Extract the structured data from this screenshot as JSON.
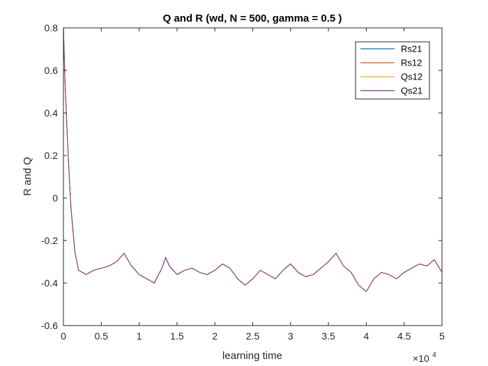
{
  "chart_data": {
    "type": "line",
    "title": "Q and R (wd, N = 500, gamma = 0.5 )",
    "xlabel": "learning time",
    "ylabel": "R and Q",
    "xlim": [
      0,
      50000
    ],
    "ylim": [
      -0.6,
      0.8
    ],
    "x_tick_labels": [
      "0",
      "0.5",
      "1",
      "1.5",
      "2",
      "2.5",
      "3",
      "3.5",
      "4",
      "4.5",
      "5"
    ],
    "x_tick_values": [
      0,
      5000,
      10000,
      15000,
      20000,
      25000,
      30000,
      35000,
      40000,
      45000,
      50000
    ],
    "x_multiplier_base": "×10",
    "x_multiplier_exp": "4",
    "y_tick_labels": [
      "0.8",
      "0.6",
      "0.4",
      "0.2",
      "0",
      "-0.2",
      "-0.4",
      "-0.6"
    ],
    "y_tick_values": [
      0.8,
      0.6,
      0.4,
      0.2,
      0,
      -0.2,
      -0.4,
      -0.6
    ],
    "legend_position": "top-right",
    "x": [
      0,
      200,
      500,
      800,
      1000,
      1500,
      2000,
      2500,
      3000,
      4000,
      5000,
      6000,
      7000,
      8000,
      9000,
      10000,
      11000,
      12000,
      13000,
      13500,
      14000,
      15000,
      16000,
      17000,
      18000,
      19000,
      20000,
      21000,
      22000,
      23000,
      24000,
      25000,
      26000,
      27000,
      28000,
      29000,
      30000,
      31000,
      32000,
      33000,
      34000,
      35000,
      36000,
      37000,
      38000,
      39000,
      40000,
      41000,
      42000,
      43000,
      44000,
      45000,
      46000,
      47000,
      48000,
      49000,
      50000
    ],
    "series": [
      {
        "name": "Rs21",
        "color": "#0072BD",
        "values": [
          0.8,
          0.55,
          0.3,
          0.08,
          -0.05,
          -0.25,
          -0.34,
          -0.35,
          -0.36,
          -0.34,
          -0.33,
          -0.32,
          -0.3,
          -0.26,
          -0.32,
          -0.36,
          -0.38,
          -0.4,
          -0.33,
          -0.28,
          -0.32,
          -0.36,
          -0.34,
          -0.33,
          -0.35,
          -0.36,
          -0.34,
          -0.31,
          -0.33,
          -0.38,
          -0.41,
          -0.38,
          -0.34,
          -0.36,
          -0.38,
          -0.34,
          -0.31,
          -0.35,
          -0.37,
          -0.36,
          -0.33,
          -0.3,
          -0.26,
          -0.32,
          -0.35,
          -0.41,
          -0.44,
          -0.38,
          -0.35,
          -0.36,
          -0.38,
          -0.35,
          -0.33,
          -0.31,
          -0.32,
          -0.29,
          -0.35
        ]
      },
      {
        "name": "Rs12",
        "color": "#D95319",
        "values": [
          0.8,
          0.55,
          0.3,
          0.08,
          -0.05,
          -0.25,
          -0.34,
          -0.35,
          -0.36,
          -0.34,
          -0.33,
          -0.32,
          -0.3,
          -0.26,
          -0.32,
          -0.36,
          -0.38,
          -0.4,
          -0.33,
          -0.28,
          -0.32,
          -0.36,
          -0.34,
          -0.33,
          -0.35,
          -0.36,
          -0.34,
          -0.31,
          -0.33,
          -0.38,
          -0.41,
          -0.38,
          -0.34,
          -0.36,
          -0.38,
          -0.34,
          -0.31,
          -0.35,
          -0.37,
          -0.36,
          -0.33,
          -0.3,
          -0.26,
          -0.32,
          -0.35,
          -0.41,
          -0.44,
          -0.38,
          -0.35,
          -0.36,
          -0.38,
          -0.35,
          -0.33,
          -0.31,
          -0.32,
          -0.29,
          -0.35
        ]
      },
      {
        "name": "Qs12",
        "color": "#EDB120",
        "values": [
          0.8,
          0.55,
          0.3,
          0.08,
          -0.05,
          -0.25,
          -0.34,
          -0.35,
          -0.36,
          -0.34,
          -0.33,
          -0.32,
          -0.3,
          -0.26,
          -0.32,
          -0.36,
          -0.38,
          -0.4,
          -0.33,
          -0.28,
          -0.32,
          -0.36,
          -0.34,
          -0.33,
          -0.35,
          -0.36,
          -0.34,
          -0.31,
          -0.33,
          -0.38,
          -0.41,
          -0.38,
          -0.34,
          -0.36,
          -0.38,
          -0.34,
          -0.31,
          -0.35,
          -0.37,
          -0.36,
          -0.33,
          -0.3,
          -0.26,
          -0.32,
          -0.35,
          -0.41,
          -0.44,
          -0.38,
          -0.35,
          -0.36,
          -0.38,
          -0.35,
          -0.33,
          -0.31,
          -0.32,
          -0.29,
          -0.35
        ]
      },
      {
        "name": "Qs21",
        "color": "#7E2F8E",
        "values": [
          0.8,
          0.55,
          0.3,
          0.08,
          -0.05,
          -0.25,
          -0.34,
          -0.35,
          -0.36,
          -0.34,
          -0.33,
          -0.32,
          -0.3,
          -0.26,
          -0.32,
          -0.36,
          -0.38,
          -0.4,
          -0.33,
          -0.28,
          -0.32,
          -0.36,
          -0.34,
          -0.33,
          -0.35,
          -0.36,
          -0.34,
          -0.31,
          -0.33,
          -0.38,
          -0.41,
          -0.38,
          -0.34,
          -0.36,
          -0.38,
          -0.34,
          -0.31,
          -0.35,
          -0.37,
          -0.36,
          -0.33,
          -0.3,
          -0.26,
          -0.32,
          -0.35,
          -0.41,
          -0.44,
          -0.38,
          -0.35,
          -0.36,
          -0.38,
          -0.35,
          -0.33,
          -0.31,
          -0.32,
          -0.29,
          -0.35
        ]
      }
    ]
  }
}
